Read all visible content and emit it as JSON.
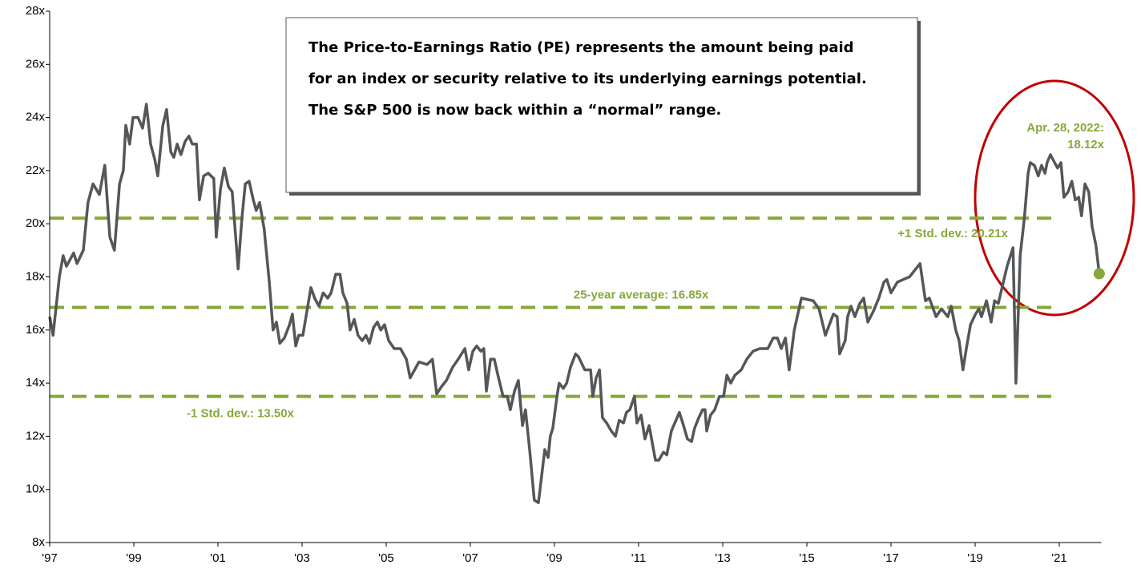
{
  "chart_data": {
    "type": "line",
    "annotation": [
      "The Price-to-Earnings Ratio (PE) represents the amount being paid",
      "for an index or security relative to its underlying earnings potential.",
      "The S&P 500 is now back within a “normal” range."
    ],
    "end_label": [
      "Apr. 28, 2022:",
      "18.12x"
    ],
    "reference_lines": [
      {
        "value": 20.21,
        "label": "+1 Std. dev.: 20.21x"
      },
      {
        "value": 16.85,
        "label": "25-year average: 16.85x"
      },
      {
        "value": 13.5,
        "label": "-1 Std. dev.: 13.50x"
      }
    ],
    "xlim": [
      1997,
      2022
    ],
    "ylim": [
      8,
      28
    ],
    "xticks": [
      {
        "value": 1997,
        "label": "'97"
      },
      {
        "value": 1999,
        "label": "'99"
      },
      {
        "value": 2001,
        "label": "'01"
      },
      {
        "value": 2003,
        "label": "'03"
      },
      {
        "value": 2005,
        "label": "'05"
      },
      {
        "value": 2007,
        "label": "'07"
      },
      {
        "value": 2009,
        "label": "'09"
      },
      {
        "value": 2011,
        "label": "'11"
      },
      {
        "value": 2013,
        "label": "'13"
      },
      {
        "value": 2015,
        "label": "'15"
      },
      {
        "value": 2017,
        "label": "'17"
      },
      {
        "value": 2019,
        "label": "'19"
      },
      {
        "value": 2021,
        "label": "'21"
      }
    ],
    "yticks": [
      {
        "value": 8,
        "label": "8x"
      },
      {
        "value": 10,
        "label": "10x"
      },
      {
        "value": 12,
        "label": "12x"
      },
      {
        "value": 14,
        "label": "14x"
      },
      {
        "value": 16,
        "label": "16x"
      },
      {
        "value": 18,
        "label": "18x"
      },
      {
        "value": 20,
        "label": "20x"
      },
      {
        "value": 22,
        "label": "22x"
      },
      {
        "value": 24,
        "label": "24x"
      },
      {
        "value": 26,
        "label": "26x"
      },
      {
        "value": 28,
        "label": "28x"
      }
    ],
    "line_color": "#54575a",
    "ref_color": "#86a83a",
    "end_color": "#86a83a",
    "x": [
      1997.0,
      1997.08,
      1997.23,
      1997.32,
      1997.4,
      1997.57,
      1997.65,
      1997.8,
      1997.91,
      1998.03,
      1998.18,
      1998.31,
      1998.43,
      1998.54,
      1998.66,
      1998.75,
      1998.81,
      1998.9,
      1998.98,
      1999.1,
      1999.21,
      1999.3,
      1999.4,
      1999.5,
      1999.57,
      1999.69,
      1999.78,
      1999.88,
      1999.95,
      2000.03,
      2000.12,
      2000.22,
      2000.31,
      2000.39,
      2000.49,
      2000.56,
      2000.66,
      2000.77,
      2000.9,
      2000.96,
      2001.06,
      2001.15,
      2001.25,
      2001.34,
      2001.48,
      2001.57,
      2001.65,
      2001.74,
      2001.84,
      2001.91,
      2001.99,
      2002.1,
      2002.22,
      2002.31,
      2002.39,
      2002.47,
      2002.58,
      2002.7,
      2002.77,
      2002.85,
      2002.92,
      2003.02,
      2003.21,
      2003.3,
      2003.4,
      2003.5,
      2003.61,
      2003.69,
      2003.8,
      2003.9,
      2003.97,
      2004.07,
      2004.14,
      2004.24,
      2004.33,
      2004.43,
      2004.52,
      2004.6,
      2004.7,
      2004.79,
      2004.87,
      2004.96,
      2005.06,
      2005.19,
      2005.34,
      2005.48,
      2005.57,
      2005.78,
      2005.97,
      2006.1,
      2006.2,
      2006.33,
      2006.43,
      2006.58,
      2006.71,
      2006.87,
      2006.96,
      2007.06,
      2007.15,
      2007.25,
      2007.32,
      2007.38,
      2007.48,
      2007.57,
      2007.67,
      2007.78,
      2007.88,
      2007.95,
      2008.05,
      2008.14,
      2008.24,
      2008.31,
      2008.41,
      2008.52,
      2008.62,
      2008.77,
      2008.85,
      2008.9,
      2008.96,
      2009.06,
      2009.11,
      2009.21,
      2009.29,
      2009.38,
      2009.5,
      2009.57,
      2009.72,
      2009.86,
      2009.91,
      2009.99,
      2010.07,
      2010.14,
      2010.24,
      2010.35,
      2010.45,
      2010.54,
      2010.64,
      2010.71,
      2010.79,
      2010.9,
      2010.96,
      2011.06,
      2011.15,
      2011.25,
      2011.4,
      2011.48,
      2011.59,
      2011.67,
      2011.78,
      2011.97,
      2012.05,
      2012.16,
      2012.26,
      2012.33,
      2012.43,
      2012.52,
      2012.58,
      2012.62,
      2012.71,
      2012.81,
      2012.92,
      2013.02,
      2013.1,
      2013.19,
      2013.29,
      2013.44,
      2013.57,
      2013.72,
      2013.88,
      2014.07,
      2014.2,
      2014.3,
      2014.39,
      2014.49,
      2014.58,
      2014.7,
      2014.87,
      2015.15,
      2015.29,
      2015.44,
      2015.63,
      2015.72,
      2015.78,
      2015.91,
      2015.97,
      2016.05,
      2016.14,
      2016.26,
      2016.35,
      2016.45,
      2016.58,
      2016.71,
      2016.83,
      2016.9,
      2017.0,
      2017.15,
      2017.29,
      2017.44,
      2017.69,
      2017.82,
      2017.91,
      2018.07,
      2018.2,
      2018.35,
      2018.43,
      2018.54,
      2018.62,
      2018.71,
      2018.79,
      2018.89,
      2019.01,
      2019.09,
      2019.15,
      2019.27,
      2019.38,
      2019.46,
      2019.55,
      2019.67,
      2019.76,
      2019.9,
      2019.97,
      2020.07,
      2020.17,
      2020.26,
      2020.31,
      2020.41,
      2020.5,
      2020.58,
      2020.66,
      2020.71,
      2020.79,
      2020.89,
      2020.96,
      2021.04,
      2021.11,
      2021.21,
      2021.3,
      2021.38,
      2021.46,
      2021.53,
      2021.61,
      2021.7,
      2021.78,
      2021.87,
      2021.95
    ],
    "values": [
      16.5,
      15.8,
      18.0,
      18.8,
      18.4,
      18.9,
      18.5,
      19.0,
      20.8,
      21.5,
      21.1,
      22.2,
      19.5,
      19.0,
      21.5,
      22.0,
      23.7,
      23.0,
      24.0,
      24.0,
      23.6,
      24.5,
      23.0,
      22.4,
      21.8,
      23.7,
      24.3,
      22.7,
      22.5,
      23.0,
      22.6,
      23.1,
      23.3,
      23.0,
      23.0,
      20.9,
      21.8,
      21.9,
      21.7,
      19.5,
      21.3,
      22.1,
      21.4,
      21.2,
      18.3,
      20.2,
      21.5,
      21.6,
      20.9,
      20.5,
      20.8,
      19.8,
      17.8,
      16.0,
      16.3,
      15.5,
      15.7,
      16.2,
      16.6,
      15.4,
      15.8,
      15.8,
      17.6,
      17.2,
      16.9,
      17.4,
      17.2,
      17.4,
      18.1,
      18.1,
      17.4,
      17.0,
      16.0,
      16.4,
      15.8,
      15.6,
      15.8,
      15.5,
      16.1,
      16.3,
      16.0,
      16.2,
      15.6,
      15.3,
      15.3,
      14.9,
      14.2,
      14.8,
      14.7,
      14.9,
      13.6,
      13.9,
      14.1,
      14.6,
      14.9,
      15.3,
      14.5,
      15.2,
      15.4,
      15.2,
      15.3,
      13.7,
      14.9,
      14.9,
      14.2,
      13.5,
      13.5,
      13.0,
      13.7,
      14.1,
      12.4,
      13.0,
      11.5,
      9.6,
      9.5,
      11.5,
      11.2,
      12.0,
      12.3,
      13.5,
      14.0,
      13.8,
      14.0,
      14.6,
      15.1,
      15.0,
      14.5,
      14.5,
      13.5,
      14.2,
      14.5,
      12.7,
      12.5,
      12.2,
      12.0,
      12.6,
      12.5,
      12.9,
      13.0,
      13.5,
      12.5,
      12.8,
      11.9,
      12.4,
      11.1,
      11.1,
      11.4,
      11.3,
      12.2,
      12.9,
      12.5,
      11.9,
      11.8,
      12.3,
      12.7,
      13.0,
      13.0,
      12.2,
      12.8,
      13.0,
      13.5,
      13.5,
      14.3,
      14.0,
      14.3,
      14.5,
      14.9,
      15.2,
      15.3,
      15.3,
      15.7,
      15.7,
      15.3,
      15.7,
      14.5,
      16.0,
      17.2,
      17.1,
      16.8,
      15.8,
      16.6,
      16.5,
      15.1,
      15.6,
      16.5,
      16.9,
      16.5,
      17.0,
      17.2,
      16.3,
      16.7,
      17.2,
      17.8,
      17.9,
      17.4,
      17.8,
      17.9,
      18.0,
      18.5,
      17.1,
      17.2,
      16.5,
      16.8,
      16.5,
      16.9,
      16.0,
      15.6,
      14.5,
      15.3,
      16.2,
      16.6,
      16.8,
      16.5,
      17.1,
      16.3,
      17.1,
      17.0,
      17.8,
      18.4,
      19.1,
      14.0,
      18.8,
      20.2,
      21.9,
      22.3,
      22.2,
      21.8,
      22.2,
      21.9,
      22.3,
      22.6,
      22.3,
      22.1,
      22.3,
      21.0,
      21.2,
      21.6,
      20.9,
      21.0,
      20.3,
      21.5,
      21.2,
      19.9,
      19.2,
      18.12
    ]
  }
}
